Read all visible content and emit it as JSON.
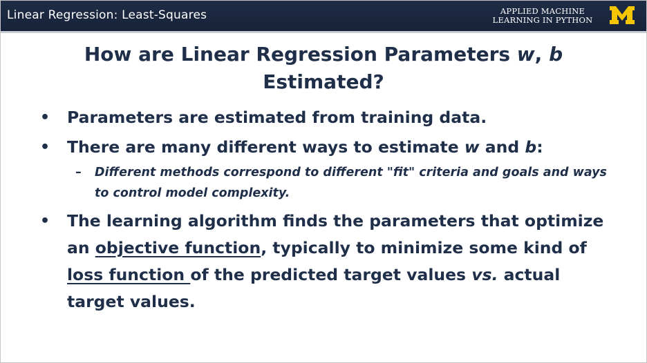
{
  "header": {
    "title": "Linear Regression: Least-Squares",
    "brand_line1": "APPLIED MACHINE",
    "brand_line2": "LEARNING IN PYTHON",
    "logo_letter": "M",
    "logo_color": "#f5c600"
  },
  "slide": {
    "title_part1": "How are Linear Regression Parameters ",
    "title_w": "w",
    "title_comma": ", ",
    "title_b": "b",
    "title_part2": "Estimated?",
    "bullet1": "Parameters are estimated from training data.",
    "bullet2_part1": "There are many different ways to estimate ",
    "bullet2_w": "w",
    "bullet2_and": " and ",
    "bullet2_b": "b",
    "bullet2_colon": ":",
    "sub1": "Different methods correspond to different \"fit\" criteria and goals and ways to control model complexity.",
    "bullet3_part1": "The learning algorithm finds the parameters that optimize an ",
    "bullet3_objective": "objective function",
    "bullet3_part2": ", typically to minimize some kind of ",
    "bullet3_loss": "loss function ",
    "bullet3_part3": "of the predicted target values ",
    "bullet3_vs": "vs.",
    "bullet3_part4": " actual target values.",
    "bullet_symbol": "•",
    "dash_symbol": "–"
  }
}
